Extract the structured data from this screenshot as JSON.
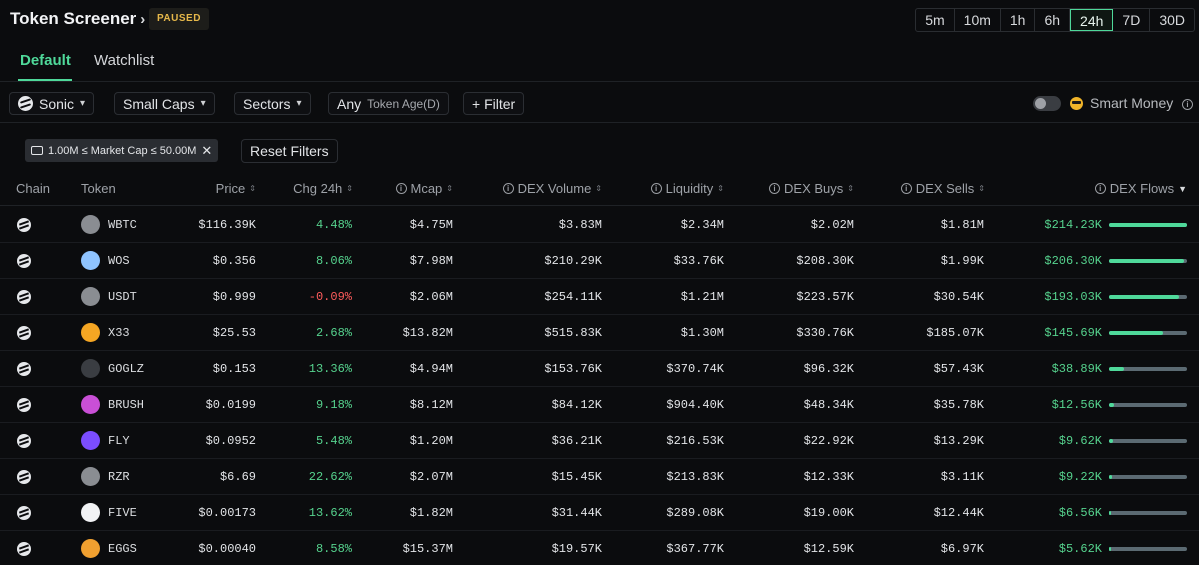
{
  "header": {
    "title": "Token Screener",
    "status_badge": "PAUSED"
  },
  "timeframes": [
    {
      "label": "5m",
      "active": false
    },
    {
      "label": "10m",
      "active": false
    },
    {
      "label": "1h",
      "active": false
    },
    {
      "label": "6h",
      "active": false
    },
    {
      "label": "24h",
      "active": true
    },
    {
      "label": "7D",
      "active": false
    },
    {
      "label": "30D",
      "active": false
    }
  ],
  "tabs": [
    {
      "label": "Default",
      "active": true
    },
    {
      "label": "Watchlist",
      "active": false
    }
  ],
  "filters": {
    "chain": "Sonic",
    "caps": "Small Caps",
    "sectors": "Sectors",
    "age_value": "Any",
    "age_label": "Token Age(D)",
    "add_filter": "+ Filter",
    "smart_money": "Smart Money",
    "smart_money_enabled": false
  },
  "active_filter": {
    "label": "1.00M ≤ Market Cap ≤ 50.00M",
    "reset": "Reset Filters"
  },
  "columns": [
    "Chain",
    "Token",
    "Price",
    "Chg 24h",
    "Mcap",
    "DEX Volume",
    "Liquidity",
    "DEX Buys",
    "DEX Sells",
    "DEX Flows"
  ],
  "colors": {
    "accent": "#4fd99a",
    "positive": "#56d38e",
    "negative": "#ff5c5c",
    "paused": "#e6b84a"
  },
  "rows": [
    {
      "token": "WBTC",
      "icon": "wbtc-icon",
      "icon_color": "#8a8d92",
      "price": "$116.39K",
      "chg": "4.48%",
      "chg_dir": "pos",
      "mcap": "$4.75M",
      "volume": "$3.83M",
      "liquidity": "$2.34M",
      "buys": "$2.02M",
      "sells": "$1.81M",
      "flows": "$214.23K",
      "flow_fraction": 1.0
    },
    {
      "token": "WOS",
      "icon": "wos-icon",
      "icon_color": "#8fc4ff",
      "price": "$0.356",
      "chg": "8.06%",
      "chg_dir": "pos",
      "mcap": "$7.98M",
      "volume": "$210.29K",
      "liquidity": "$33.76K",
      "buys": "$208.30K",
      "sells": "$1.99K",
      "flows": "$206.30K",
      "flow_fraction": 0.96
    },
    {
      "token": "USDT",
      "icon": "usdt-icon",
      "icon_color": "#8a8d92",
      "price": "$0.999",
      "chg": "-0.09%",
      "chg_dir": "neg",
      "mcap": "$2.06M",
      "volume": "$254.11K",
      "liquidity": "$1.21M",
      "buys": "$223.57K",
      "sells": "$30.54K",
      "flows": "$193.03K",
      "flow_fraction": 0.9
    },
    {
      "token": "X33",
      "icon": "x33-icon",
      "icon_color": "#f5a623",
      "price": "$25.53",
      "chg": "2.68%",
      "chg_dir": "pos",
      "mcap": "$13.82M",
      "volume": "$515.83K",
      "liquidity": "$1.30M",
      "buys": "$330.76K",
      "sells": "$185.07K",
      "flows": "$145.69K",
      "flow_fraction": 0.69
    },
    {
      "token": "GOGLZ",
      "icon": "goglz-icon",
      "icon_color": "#3a3d42",
      "price": "$0.153",
      "chg": "13.36%",
      "chg_dir": "pos",
      "mcap": "$4.94M",
      "volume": "$153.76K",
      "liquidity": "$370.74K",
      "buys": "$96.32K",
      "sells": "$57.43K",
      "flows": "$38.89K",
      "flow_fraction": 0.19
    },
    {
      "token": "BRUSH",
      "icon": "brush-icon",
      "icon_color": "#c94fd6",
      "price": "$0.0199",
      "chg": "9.18%",
      "chg_dir": "pos",
      "mcap": "$8.12M",
      "volume": "$84.12K",
      "liquidity": "$904.40K",
      "buys": "$48.34K",
      "sells": "$35.78K",
      "flows": "$12.56K",
      "flow_fraction": 0.06
    },
    {
      "token": "FLY",
      "icon": "fly-icon",
      "icon_color": "#7b4dff",
      "price": "$0.0952",
      "chg": "5.48%",
      "chg_dir": "pos",
      "mcap": "$1.20M",
      "volume": "$36.21K",
      "liquidity": "$216.53K",
      "buys": "$22.92K",
      "sells": "$13.29K",
      "flows": "$9.62K",
      "flow_fraction": 0.05
    },
    {
      "token": "RZR",
      "icon": "rzr-icon",
      "icon_color": "#8a8d92",
      "price": "$6.69",
      "chg": "22.62%",
      "chg_dir": "pos",
      "mcap": "$2.07M",
      "volume": "$15.45K",
      "liquidity": "$213.83K",
      "buys": "$12.33K",
      "sells": "$3.11K",
      "flows": "$9.22K",
      "flow_fraction": 0.04
    },
    {
      "token": "FIVE",
      "icon": "five-icon",
      "icon_color": "#f2f3f5",
      "price": "$0.00173",
      "chg": "13.62%",
      "chg_dir": "pos",
      "mcap": "$1.82M",
      "volume": "$31.44K",
      "liquidity": "$289.08K",
      "buys": "$19.00K",
      "sells": "$12.44K",
      "flows": "$6.56K",
      "flow_fraction": 0.03
    },
    {
      "token": "EGGS",
      "icon": "eggs-icon",
      "icon_color": "#f0a030",
      "price": "$0.00040",
      "chg": "8.58%",
      "chg_dir": "pos",
      "mcap": "$15.37M",
      "volume": "$19.57K",
      "liquidity": "$367.77K",
      "buys": "$12.59K",
      "sells": "$6.97K",
      "flows": "$5.62K",
      "flow_fraction": 0.03
    }
  ]
}
